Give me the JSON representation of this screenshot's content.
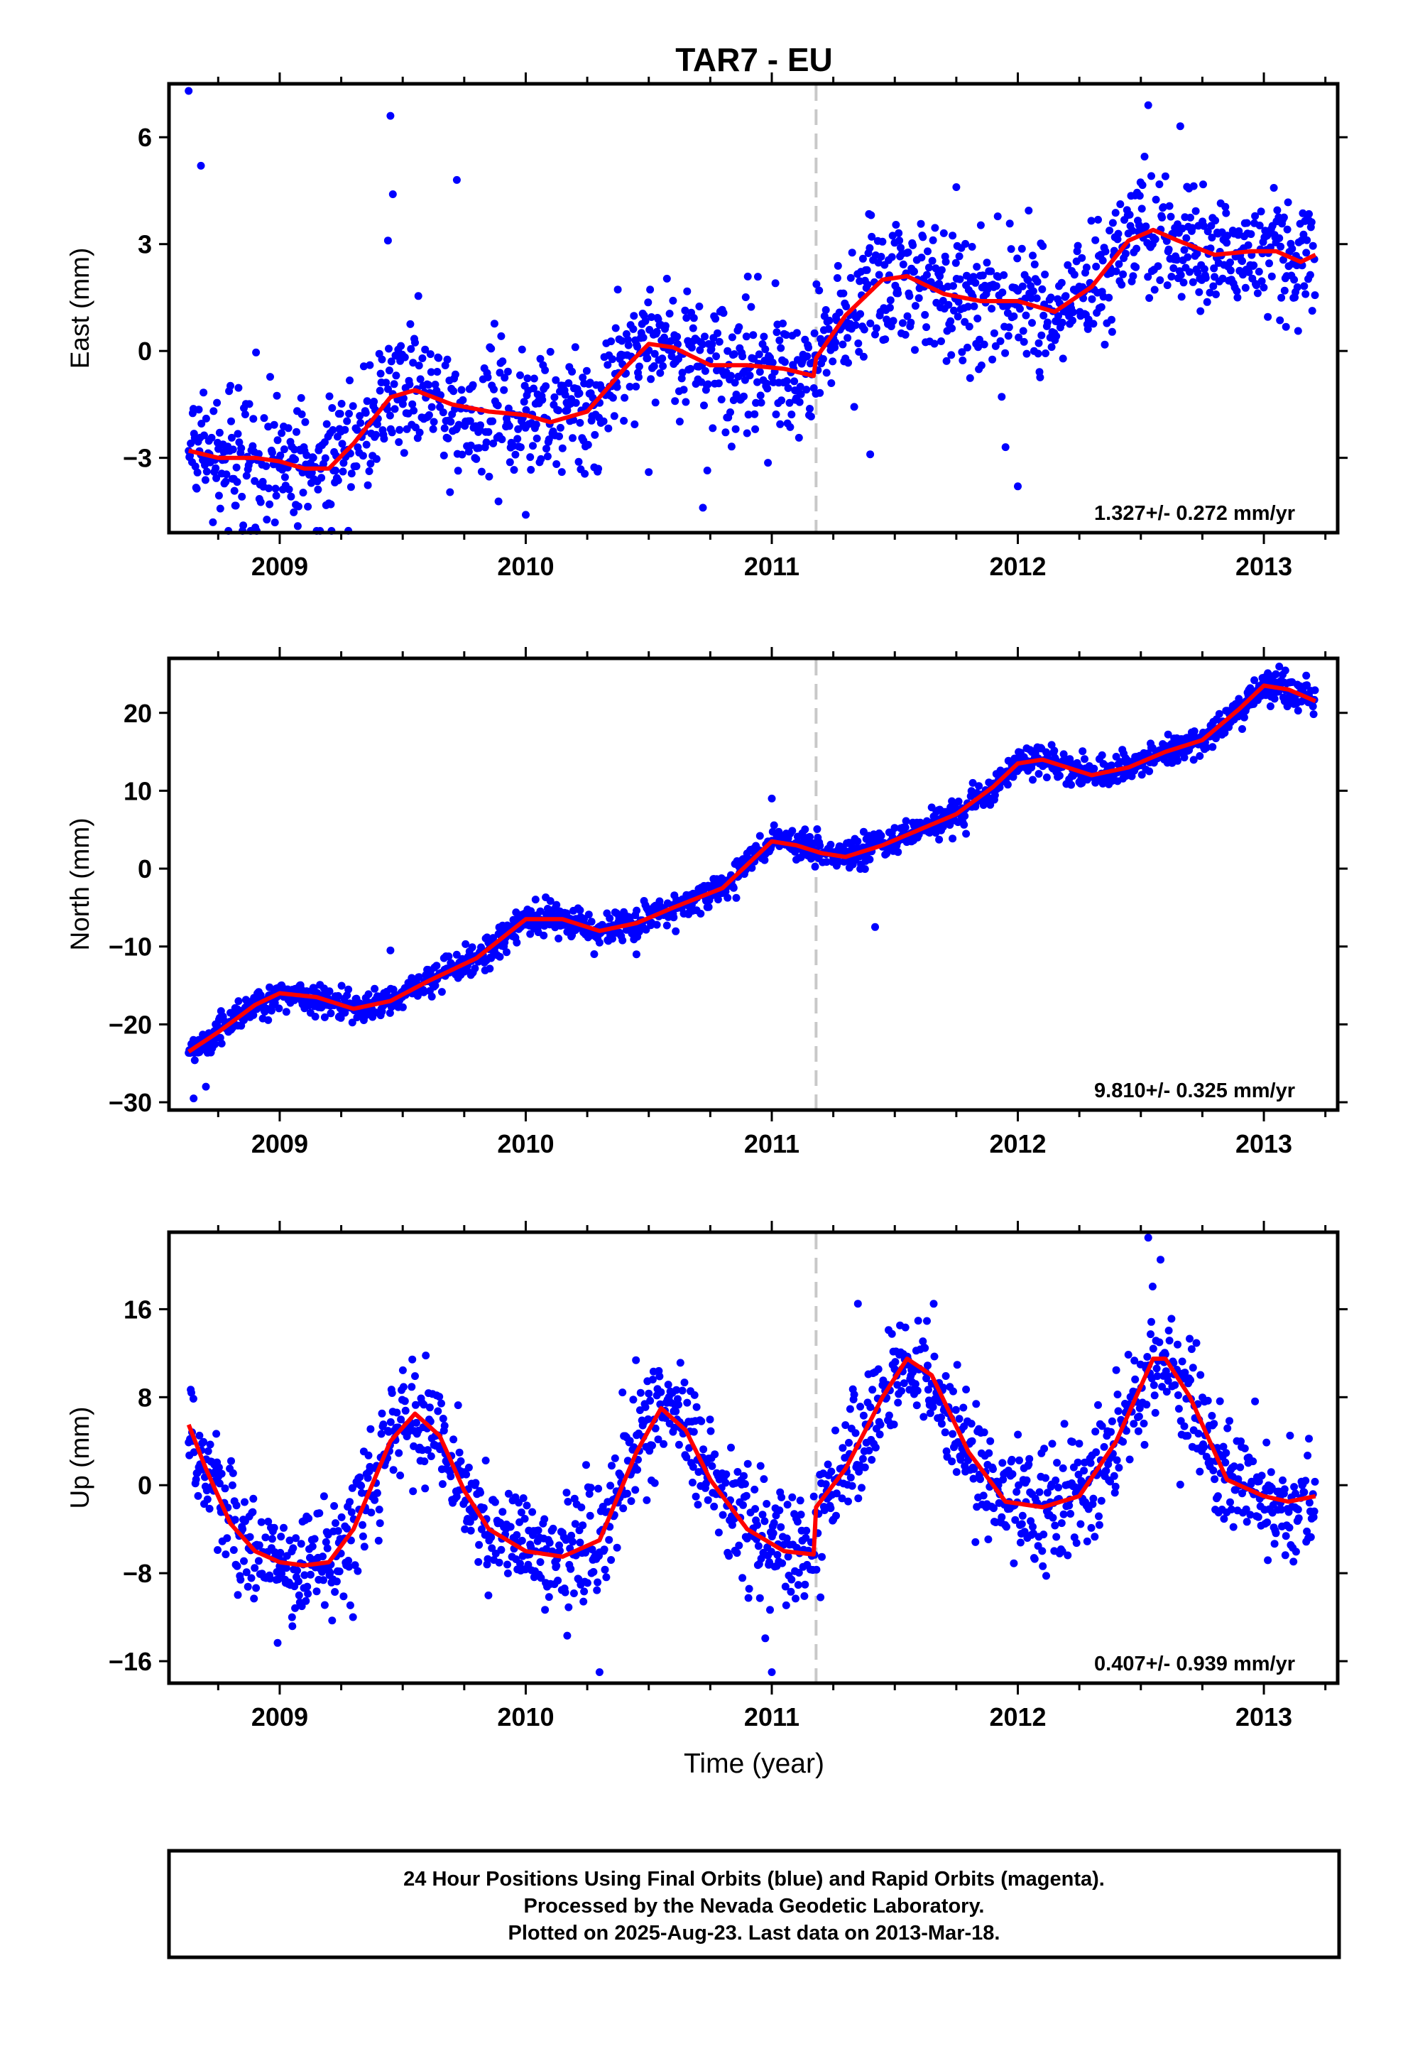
{
  "title": "TAR7 - EU",
  "xlabel": "Time (year)",
  "colors": {
    "points": "#0000ff",
    "fit": "#ff0000",
    "offset_line": "#c8c8c8",
    "frame": "#000000"
  },
  "footer": {
    "line1": "24 Hour Positions Using Final Orbits (blue) and Rapid Orbits (magenta).",
    "line2": "Processed by the Nevada Geodetic Laboratory.",
    "line3": "Plotted on 2025-Aug-23. Last data on 2013-Mar-18."
  },
  "chart_data": [
    {
      "type": "scatter",
      "component": "east",
      "ylabel": "East (mm)",
      "rate_label": "1.327+/- 0.272 mm/yr",
      "xlim": [
        2008.55,
        2013.3
      ],
      "ylim": [
        -5.1,
        7.5
      ],
      "yticks": [
        -3,
        0,
        3,
        6
      ],
      "xticks": [
        2009,
        2010,
        2011,
        2012,
        2013
      ],
      "offset_epoch": 2011.18,
      "fit": {
        "x": [
          2008.63,
          2008.75,
          2008.9,
          2009.0,
          2009.1,
          2009.2,
          2009.3,
          2009.45,
          2009.55,
          2009.7,
          2009.85,
          2010.0,
          2010.1,
          2010.25,
          2010.4,
          2010.5,
          2010.6,
          2010.75,
          2010.9,
          2011.05,
          2011.17,
          2011.18,
          2011.3,
          2011.45,
          2011.55,
          2011.7,
          2011.85,
          2012.0,
          2012.15,
          2012.3,
          2012.45,
          2012.55,
          2012.65,
          2012.8,
          2012.95,
          2013.05,
          2013.15,
          2013.21
        ],
        "y": [
          -2.8,
          -3.0,
          -3.0,
          -3.1,
          -3.3,
          -3.3,
          -2.6,
          -1.3,
          -1.1,
          -1.5,
          -1.7,
          -1.8,
          -2.0,
          -1.7,
          -0.5,
          0.2,
          0.1,
          -0.4,
          -0.4,
          -0.5,
          -0.7,
          -0.2,
          1.0,
          2.0,
          2.1,
          1.6,
          1.4,
          1.4,
          1.1,
          1.8,
          3.1,
          3.4,
          3.1,
          2.7,
          2.8,
          2.8,
          2.5,
          2.7
        ]
      },
      "scatter_sigma": 0.9,
      "outliers": {
        "x": [
          2008.63,
          2008.68,
          2009.45,
          2009.46,
          2009.44,
          2009.72,
          2010.0,
          2010.72,
          2011.75,
          2011.95,
          2011.4,
          2012.53,
          2010.5,
          2012.0
        ],
        "y": [
          7.3,
          5.2,
          6.6,
          4.4,
          3.1,
          4.8,
          -4.6,
          -4.4,
          4.6,
          -2.7,
          -2.9,
          6.9,
          -3.4,
          -3.8
        ]
      }
    },
    {
      "type": "scatter",
      "component": "north",
      "ylabel": "North (mm)",
      "rate_label": "9.810+/- 0.325 mm/yr",
      "xlim": [
        2008.55,
        2013.3
      ],
      "ylim": [
        -31,
        27
      ],
      "yticks": [
        -30,
        -20,
        -10,
        0,
        10,
        20
      ],
      "xticks": [
        2009,
        2010,
        2011,
        2012,
        2013
      ],
      "offset_epoch": 2011.18,
      "fit": {
        "x": [
          2008.63,
          2008.75,
          2008.9,
          2009.0,
          2009.15,
          2009.3,
          2009.45,
          2009.6,
          2009.8,
          2010.0,
          2010.15,
          2010.3,
          2010.45,
          2010.6,
          2010.8,
          2011.0,
          2011.1,
          2011.2,
          2011.3,
          2011.45,
          2011.6,
          2011.75,
          2011.9,
          2012.0,
          2012.1,
          2012.2,
          2012.3,
          2012.45,
          2012.6,
          2012.75,
          2012.9,
          2013.0,
          2013.1,
          2013.21
        ],
        "y": [
          -23.5,
          -21.0,
          -17.5,
          -16.0,
          -16.5,
          -18.0,
          -17.0,
          -14.5,
          -11.5,
          -6.5,
          -6.5,
          -8.0,
          -7.0,
          -5.0,
          -2.5,
          3.5,
          3.0,
          2.0,
          1.5,
          3.0,
          5.0,
          7.0,
          10.5,
          13.5,
          14.0,
          13.0,
          12.0,
          13.0,
          15.0,
          16.5,
          20.5,
          23.5,
          23.0,
          21.5
        ]
      },
      "scatter_sigma": 1.0,
      "outliers": {
        "x": [
          2008.65,
          2008.7,
          2009.45,
          2010.45,
          2011.0,
          2011.42,
          2010.3
        ],
        "y": [
          -29.5,
          -28.0,
          -10.5,
          -11.0,
          9.0,
          -7.5,
          -9.5
        ]
      }
    },
    {
      "type": "scatter",
      "component": "up",
      "ylabel": "Up (mm)",
      "rate_label": "0.407+/- 0.939 mm/yr",
      "xlim": [
        2008.55,
        2013.3
      ],
      "ylim": [
        -18,
        23
      ],
      "yticks": [
        -16,
        -8,
        0,
        8,
        16
      ],
      "xticks": [
        2009,
        2010,
        2011,
        2012,
        2013
      ],
      "offset_epoch": 2011.18,
      "fit": {
        "x": [
          2008.63,
          2008.7,
          2008.8,
          2008.9,
          2009.0,
          2009.1,
          2009.2,
          2009.3,
          2009.45,
          2009.55,
          2009.65,
          2009.75,
          2009.85,
          2010.0,
          2010.15,
          2010.3,
          2010.45,
          2010.55,
          2010.65,
          2010.75,
          2010.9,
          2011.05,
          2011.17,
          2011.18,
          2011.3,
          2011.45,
          2011.55,
          2011.65,
          2011.8,
          2011.95,
          2012.1,
          2012.25,
          2012.4,
          2012.55,
          2012.6,
          2012.7,
          2012.85,
          2013.0,
          2013.1,
          2013.21
        ],
        "y": [
          5.5,
          1.5,
          -3.5,
          -6.0,
          -7.0,
          -7.3,
          -7.0,
          -4.0,
          4.0,
          6.5,
          4.5,
          -0.5,
          -4.0,
          -6.0,
          -6.5,
          -5.0,
          3.0,
          7.0,
          5.0,
          0.5,
          -4.0,
          -6.0,
          -6.3,
          -2.0,
          1.5,
          8.0,
          11.5,
          10.0,
          3.0,
          -1.5,
          -2.0,
          -1.0,
          4.0,
          11.5,
          11.5,
          8.0,
          0.5,
          -1.0,
          -1.5,
          -1.0
        ]
      },
      "scatter_sigma": 2.6,
      "outliers": {
        "x": [
          2012.53,
          2012.58,
          2011.0,
          2010.3,
          2009.05,
          2011.35
        ],
        "y": [
          22.5,
          20.5,
          -17.0,
          -17.0,
          -12.0,
          16.5
        ]
      }
    }
  ]
}
